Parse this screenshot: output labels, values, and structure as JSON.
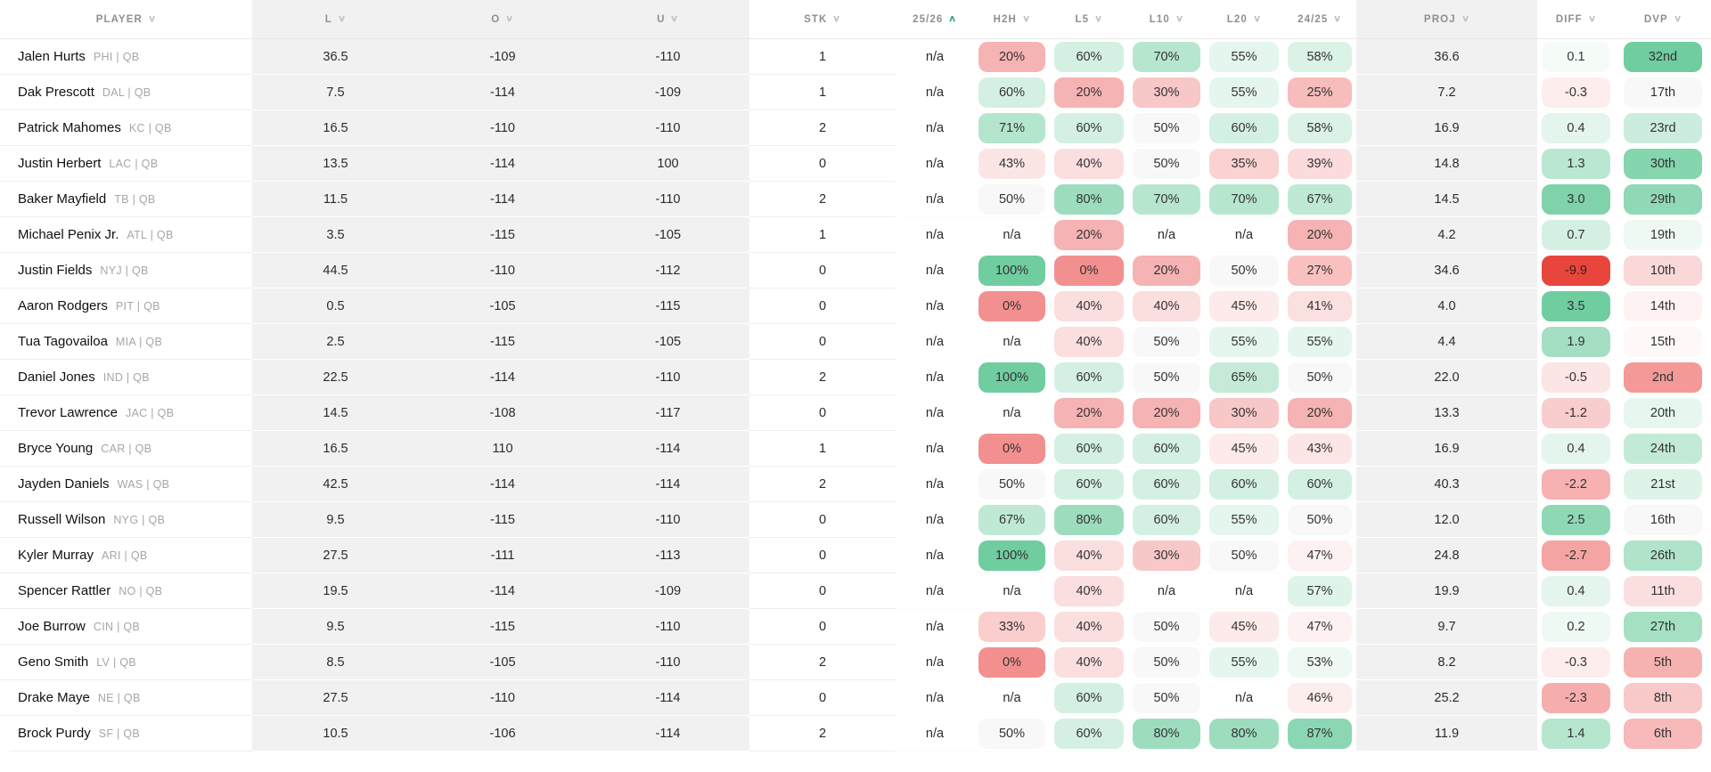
{
  "table": {
    "columns": [
      {
        "key": "player",
        "label": "PLAYER",
        "sorted": "none"
      },
      {
        "key": "l",
        "label": "L",
        "sorted": "none"
      },
      {
        "key": "o",
        "label": "O",
        "sorted": "none"
      },
      {
        "key": "u",
        "label": "U",
        "sorted": "none"
      },
      {
        "key": "stk",
        "label": "STK",
        "sorted": "none"
      },
      {
        "key": "s2526",
        "label": "25/26",
        "sorted": "asc"
      },
      {
        "key": "h2h",
        "label": "H2H",
        "sorted": "none"
      },
      {
        "key": "l5",
        "label": "L5",
        "sorted": "none"
      },
      {
        "key": "l10",
        "label": "L10",
        "sorted": "none"
      },
      {
        "key": "l20",
        "label": "L20",
        "sorted": "none"
      },
      {
        "key": "s2425",
        "label": "24/25",
        "sorted": "none"
      },
      {
        "key": "proj",
        "label": "PROJ",
        "sorted": "none"
      },
      {
        "key": "diff",
        "label": "DIFF",
        "sorted": "none"
      },
      {
        "key": "dvp",
        "label": "DVP",
        "sorted": "none"
      }
    ],
    "rows": [
      {
        "name": "Jalen Hurts",
        "team": "PHI | QB",
        "l": "36.5",
        "o": "-109",
        "u": "-110",
        "stk": "1",
        "s2526": "n/a",
        "h2h": "20%",
        "l5": "60%",
        "l10": "70%",
        "l20": "55%",
        "s2425": "58%",
        "proj": "36.6",
        "diff": "0.1",
        "dvp": "32nd"
      },
      {
        "name": "Dak Prescott",
        "team": "DAL | QB",
        "l": "7.5",
        "o": "-114",
        "u": "-109",
        "stk": "1",
        "s2526": "n/a",
        "h2h": "60%",
        "l5": "20%",
        "l10": "30%",
        "l20": "55%",
        "s2425": "25%",
        "proj": "7.2",
        "diff": "-0.3",
        "dvp": "17th"
      },
      {
        "name": "Patrick Mahomes",
        "team": "KC | QB",
        "l": "16.5",
        "o": "-110",
        "u": "-110",
        "stk": "2",
        "s2526": "n/a",
        "h2h": "71%",
        "l5": "60%",
        "l10": "50%",
        "l20": "60%",
        "s2425": "58%",
        "proj": "16.9",
        "diff": "0.4",
        "dvp": "23rd"
      },
      {
        "name": "Justin Herbert",
        "team": "LAC | QB",
        "l": "13.5",
        "o": "-114",
        "u": "100",
        "stk": "0",
        "s2526": "n/a",
        "h2h": "43%",
        "l5": "40%",
        "l10": "50%",
        "l20": "35%",
        "s2425": "39%",
        "proj": "14.8",
        "diff": "1.3",
        "dvp": "30th"
      },
      {
        "name": "Baker Mayfield",
        "team": "TB | QB",
        "l": "11.5",
        "o": "-114",
        "u": "-110",
        "stk": "2",
        "s2526": "n/a",
        "h2h": "50%",
        "l5": "80%",
        "l10": "70%",
        "l20": "70%",
        "s2425": "67%",
        "proj": "14.5",
        "diff": "3.0",
        "dvp": "29th"
      },
      {
        "name": "Michael Penix Jr.",
        "team": "ATL | QB",
        "l": "3.5",
        "o": "-115",
        "u": "-105",
        "stk": "1",
        "s2526": "n/a",
        "h2h": "n/a",
        "l5": "20%",
        "l10": "n/a",
        "l20": "n/a",
        "s2425": "20%",
        "proj": "4.2",
        "diff": "0.7",
        "dvp": "19th"
      },
      {
        "name": "Justin Fields",
        "team": "NYJ | QB",
        "l": "44.5",
        "o": "-110",
        "u": "-112",
        "stk": "0",
        "s2526": "n/a",
        "h2h": "100%",
        "l5": "0%",
        "l10": "20%",
        "l20": "50%",
        "s2425": "27%",
        "proj": "34.6",
        "diff": "-9.9",
        "dvp": "10th"
      },
      {
        "name": "Aaron Rodgers",
        "team": "PIT | QB",
        "l": "0.5",
        "o": "-105",
        "u": "-115",
        "stk": "0",
        "s2526": "n/a",
        "h2h": "0%",
        "l5": "40%",
        "l10": "40%",
        "l20": "45%",
        "s2425": "41%",
        "proj": "4.0",
        "diff": "3.5",
        "dvp": "14th"
      },
      {
        "name": "Tua Tagovailoa",
        "team": "MIA | QB",
        "l": "2.5",
        "o": "-115",
        "u": "-105",
        "stk": "0",
        "s2526": "n/a",
        "h2h": "n/a",
        "l5": "40%",
        "l10": "50%",
        "l20": "55%",
        "s2425": "55%",
        "proj": "4.4",
        "diff": "1.9",
        "dvp": "15th"
      },
      {
        "name": "Daniel Jones",
        "team": "IND | QB",
        "l": "22.5",
        "o": "-114",
        "u": "-110",
        "stk": "2",
        "s2526": "n/a",
        "h2h": "100%",
        "l5": "60%",
        "l10": "50%",
        "l20": "65%",
        "s2425": "50%",
        "proj": "22.0",
        "diff": "-0.5",
        "dvp": "2nd"
      },
      {
        "name": "Trevor Lawrence",
        "team": "JAC | QB",
        "l": "14.5",
        "o": "-108",
        "u": "-117",
        "stk": "0",
        "s2526": "n/a",
        "h2h": "n/a",
        "l5": "20%",
        "l10": "20%",
        "l20": "30%",
        "s2425": "20%",
        "proj": "13.3",
        "diff": "-1.2",
        "dvp": "20th"
      },
      {
        "name": "Bryce Young",
        "team": "CAR | QB",
        "l": "16.5",
        "o": "110",
        "u": "-114",
        "stk": "1",
        "s2526": "n/a",
        "h2h": "0%",
        "l5": "60%",
        "l10": "60%",
        "l20": "45%",
        "s2425": "43%",
        "proj": "16.9",
        "diff": "0.4",
        "dvp": "24th"
      },
      {
        "name": "Jayden Daniels",
        "team": "WAS | QB",
        "l": "42.5",
        "o": "-114",
        "u": "-114",
        "stk": "2",
        "s2526": "n/a",
        "h2h": "50%",
        "l5": "60%",
        "l10": "60%",
        "l20": "60%",
        "s2425": "60%",
        "proj": "40.3",
        "diff": "-2.2",
        "dvp": "21st"
      },
      {
        "name": "Russell Wilson",
        "team": "NYG | QB",
        "l": "9.5",
        "o": "-115",
        "u": "-110",
        "stk": "0",
        "s2526": "n/a",
        "h2h": "67%",
        "l5": "80%",
        "l10": "60%",
        "l20": "55%",
        "s2425": "50%",
        "proj": "12.0",
        "diff": "2.5",
        "dvp": "16th"
      },
      {
        "name": "Kyler Murray",
        "team": "ARI | QB",
        "l": "27.5",
        "o": "-111",
        "u": "-113",
        "stk": "0",
        "s2526": "n/a",
        "h2h": "100%",
        "l5": "40%",
        "l10": "30%",
        "l20": "50%",
        "s2425": "47%",
        "proj": "24.8",
        "diff": "-2.7",
        "dvp": "26th"
      },
      {
        "name": "Spencer Rattler",
        "team": "NO | QB",
        "l": "19.5",
        "o": "-114",
        "u": "-109",
        "stk": "0",
        "s2526": "n/a",
        "h2h": "n/a",
        "l5": "40%",
        "l10": "n/a",
        "l20": "n/a",
        "s2425": "57%",
        "proj": "19.9",
        "diff": "0.4",
        "dvp": "11th"
      },
      {
        "name": "Joe Burrow",
        "team": "CIN | QB",
        "l": "9.5",
        "o": "-115",
        "u": "-110",
        "stk": "0",
        "s2526": "n/a",
        "h2h": "33%",
        "l5": "40%",
        "l10": "50%",
        "l20": "45%",
        "s2425": "47%",
        "proj": "9.7",
        "diff": "0.2",
        "dvp": "27th"
      },
      {
        "name": "Geno Smith",
        "team": "LV | QB",
        "l": "8.5",
        "o": "-105",
        "u": "-110",
        "stk": "2",
        "s2526": "n/a",
        "h2h": "0%",
        "l5": "40%",
        "l10": "50%",
        "l20": "55%",
        "s2425": "53%",
        "proj": "8.2",
        "diff": "-0.3",
        "dvp": "5th"
      },
      {
        "name": "Drake Maye",
        "team": "NE | QB",
        "l": "27.5",
        "o": "-110",
        "u": "-114",
        "stk": "0",
        "s2526": "n/a",
        "h2h": "n/a",
        "l5": "60%",
        "l10": "50%",
        "l20": "n/a",
        "s2425": "46%",
        "proj": "25.2",
        "diff": "-2.3",
        "dvp": "8th"
      },
      {
        "name": "Brock Purdy",
        "team": "SF | QB",
        "l": "10.5",
        "o": "-106",
        "u": "-114",
        "stk": "2",
        "s2526": "n/a",
        "h2h": "50%",
        "l5": "60%",
        "l10": "80%",
        "l20": "80%",
        "s2425": "87%",
        "proj": "11.9",
        "diff": "1.4",
        "dvp": "6th"
      }
    ]
  },
  "colors": {
    "chip_green": "#6fcda0",
    "chip_red": "#f2908f",
    "chip_extreme_red": "#e8453d",
    "chip_extreme_text": "#3f1d1b",
    "chip_neutral": "#f8f8f8",
    "sort_active_green": "#2fa874"
  }
}
